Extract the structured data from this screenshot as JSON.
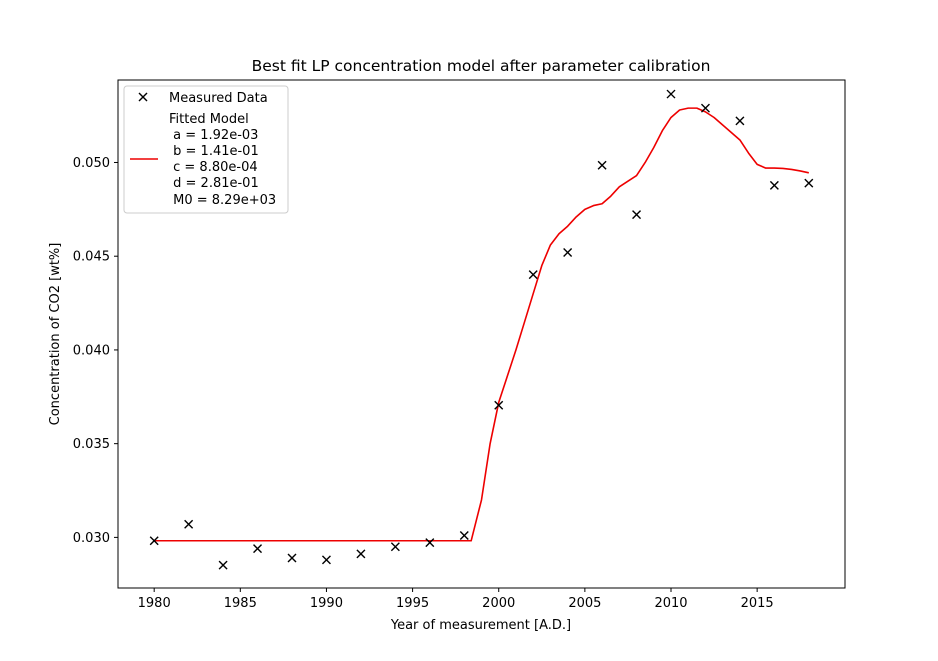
{
  "chart_data": {
    "type": "line",
    "title": "Best fit LP concentration model after parameter calibration",
    "xlabel": "Year of measurement [A.D.]",
    "ylabel": "Concentration of CO2 [wt%]",
    "xlim": [
      1977.9,
      2020.1
    ],
    "ylim": [
      0.0273,
      0.0544
    ],
    "xticks": [
      1980,
      1985,
      1990,
      1995,
      2000,
      2005,
      2010,
      2015
    ],
    "yticks": [
      0.03,
      0.035,
      0.04,
      0.045,
      0.05
    ],
    "ytick_labels": [
      "0.030",
      "0.035",
      "0.040",
      "0.045",
      "0.050"
    ],
    "grid": false,
    "legend_position": "upper-left",
    "series": [
      {
        "name": "Measured Data",
        "kind": "scatter",
        "marker": "x",
        "color": "#000000",
        "x": [
          1980,
          1982,
          1984,
          1986,
          1988,
          1990,
          1992,
          1994,
          1996,
          1998,
          2000,
          2002,
          2004,
          2006,
          2008,
          2010,
          2012,
          2014,
          2016,
          2018
        ],
        "y": [
          0.02982,
          0.0307,
          0.02852,
          0.0294,
          0.0289,
          0.0288,
          0.02912,
          0.0295,
          0.02972,
          0.0301,
          0.03705,
          0.04402,
          0.0452,
          0.04985,
          0.04722,
          0.05365,
          0.0529,
          0.05222,
          0.04878,
          0.0489
        ]
      },
      {
        "name": "Fitted Model",
        "kind": "line",
        "color": "#ee0000",
        "legend_params": [
          " a = 1.92e-03",
          " b = 1.41e-01",
          " c = 8.80e-04",
          " d = 2.81e-01",
          " M0 = 8.29e+03"
        ],
        "x": [
          1980,
          1985,
          1990,
          1995,
          1998.4,
          1999.0,
          1999.5,
          2000.0,
          2000.5,
          2001.0,
          2001.5,
          2002.0,
          2002.5,
          2003.0,
          2003.5,
          2004.0,
          2004.5,
          2005.0,
          2005.5,
          2006.0,
          2006.5,
          2007.0,
          2007.5,
          2008.0,
          2008.5,
          2009.0,
          2009.5,
          2010.0,
          2010.5,
          2011.0,
          2011.5,
          2012.0,
          2012.5,
          2013.0,
          2013.5,
          2014.0,
          2014.5,
          2015.0,
          2015.5,
          2016.0,
          2016.5,
          2017.0,
          2017.5,
          2018.0
        ],
        "y": [
          0.02982,
          0.02982,
          0.02982,
          0.02982,
          0.02982,
          0.032,
          0.035,
          0.0372,
          0.0386,
          0.04,
          0.0415,
          0.043,
          0.0445,
          0.0456,
          0.0462,
          0.0466,
          0.0471,
          0.0475,
          0.0477,
          0.0478,
          0.0482,
          0.0487,
          0.049,
          0.0493,
          0.05,
          0.0508,
          0.0517,
          0.0524,
          0.0528,
          0.0529,
          0.0529,
          0.0527,
          0.0524,
          0.052,
          0.0516,
          0.0512,
          0.0505,
          0.0499,
          0.0497,
          0.0497,
          0.04968,
          0.04963,
          0.04955,
          0.04945
        ]
      }
    ]
  }
}
